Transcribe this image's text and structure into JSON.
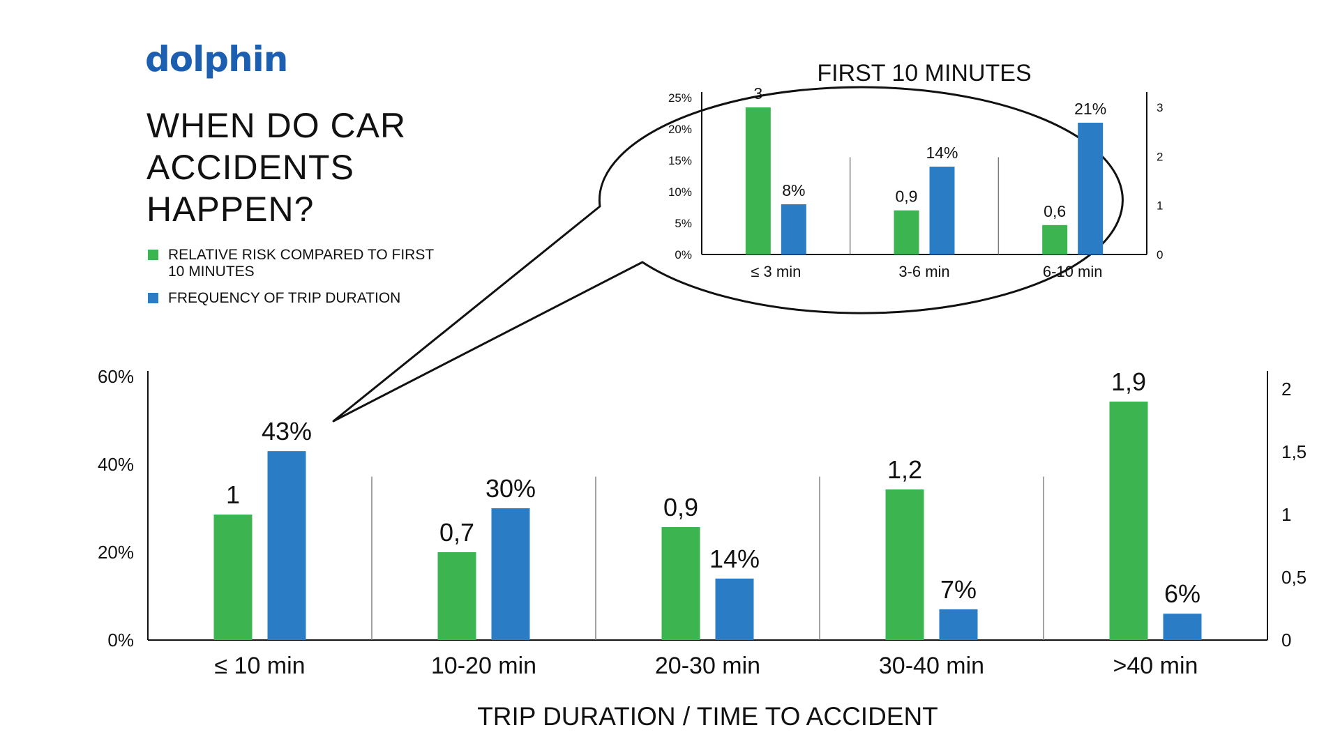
{
  "brand": {
    "logo_text": "dolphin"
  },
  "headline": "WHEN DO CAR ACCIDENTS HAPPEN?",
  "legend": [
    {
      "label": "RELATIVE RISK COMPARED TO FIRST 10 MINUTES",
      "color": "#3cb550"
    },
    {
      "label": "FREQUENCY OF TRIP DURATION",
      "color": "#2a7dc5"
    }
  ],
  "colors": {
    "risk": "#3cb550",
    "frequency": "#2a7dc5",
    "axis": "#111111"
  },
  "chart_data": [
    {
      "type": "bar",
      "title": "",
      "xlabel": "TRIP DURATION / TIME TO ACCIDENT",
      "categories": [
        "≤ 10 min",
        "10-20 min",
        "20-30 min",
        "30-40 min",
        ">40 min"
      ],
      "series": [
        {
          "name": "RELATIVE RISK COMPARED TO FIRST 10 MINUTES",
          "axis": "right",
          "values": [
            1,
            0.7,
            0.9,
            1.2,
            1.9
          ],
          "labels": [
            "1",
            "0,7",
            "0,9",
            "1,2",
            "1,9"
          ]
        },
        {
          "name": "FREQUENCY OF TRIP DURATION",
          "axis": "left",
          "values": [
            43,
            30,
            14,
            7,
            6
          ],
          "labels": [
            "43%",
            "30%",
            "14%",
            "7%",
            "6%"
          ]
        }
      ],
      "left_axis": {
        "ticks": [
          0,
          20,
          40,
          60
        ],
        "tick_labels": [
          "0%",
          "20%",
          "40%",
          "60%"
        ],
        "ylim": [
          0,
          60
        ]
      },
      "right_axis": {
        "ticks": [
          0,
          0.5,
          1,
          1.5,
          2
        ],
        "tick_labels": [
          "0",
          "0,5",
          "1",
          "1,5",
          "2"
        ],
        "ylim": [
          0,
          2.1
        ]
      },
      "grid": false
    },
    {
      "type": "bar",
      "title": "FIRST 10 MINUTES",
      "xlabel": "",
      "categories": [
        "≤ 3 min",
        "3-6 min",
        "6-10 min"
      ],
      "series": [
        {
          "name": "RELATIVE RISK COMPARED TO FIRST 10 MINUTES",
          "axis": "right",
          "values": [
            3,
            0.9,
            0.6
          ],
          "labels": [
            "3",
            "0,9",
            "0,6"
          ]
        },
        {
          "name": "FREQUENCY OF TRIP DURATION",
          "axis": "left",
          "values": [
            8,
            14,
            21
          ],
          "labels": [
            "8%",
            "14%",
            "21%"
          ]
        }
      ],
      "left_axis": {
        "ticks": [
          0,
          5,
          10,
          15,
          20,
          25
        ],
        "tick_labels": [
          "0%",
          "5%",
          "10%",
          "15%",
          "20%",
          "25%"
        ],
        "ylim": [
          0,
          25
        ]
      },
      "right_axis": {
        "ticks": [
          0,
          1,
          2,
          3
        ],
        "tick_labels": [
          "0",
          "1",
          "2",
          "3"
        ],
        "ylim": [
          0,
          3.2
        ]
      },
      "grid": false
    }
  ]
}
